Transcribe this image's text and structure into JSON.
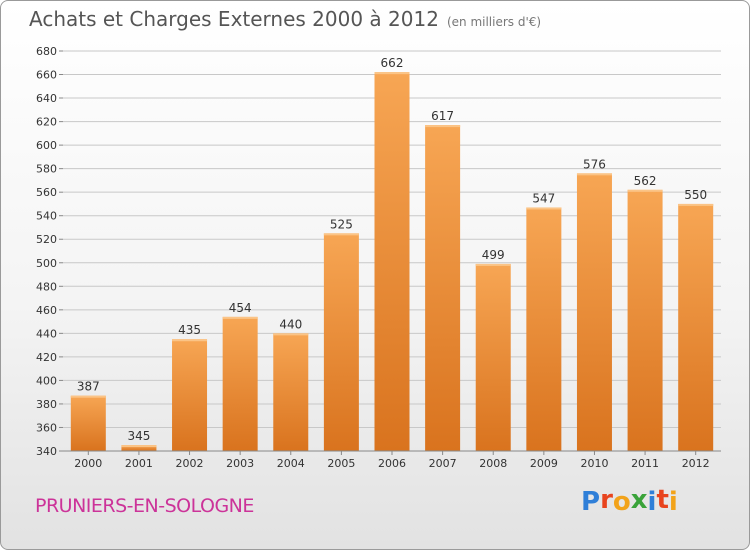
{
  "header": {
    "title": "Achats et Charges Externes 2000 à 2012",
    "subtitle": "(en milliers d'€)"
  },
  "footer": {
    "place": "PRUNIERS-EN-SOLOGNE",
    "logo_letters": [
      "P",
      "r",
      "o",
      "x",
      "i",
      "t",
      "i"
    ],
    "logo_colors": [
      "#2f7fd8",
      "#e8441e",
      "#f2a31a",
      "#3aa33a",
      "#2f7fd8",
      "#e8441e",
      "#f2a31a"
    ]
  },
  "chart_data": {
    "type": "bar",
    "categories": [
      "2000",
      "2001",
      "2002",
      "2003",
      "2004",
      "2005",
      "2006",
      "2007",
      "2008",
      "2009",
      "2010",
      "2011",
      "2012"
    ],
    "values": [
      387,
      345,
      435,
      454,
      440,
      525,
      662,
      617,
      499,
      547,
      576,
      562,
      550
    ],
    "data_labels": [
      "387",
      "345",
      "435",
      "454",
      "440",
      "525",
      "662",
      "617",
      "499",
      "547",
      "576",
      "562",
      "550"
    ],
    "title": "Achats et Charges Externes 2000 à 2012",
    "subtitle": "(en milliers d'€)",
    "xlabel": "",
    "ylabel": "",
    "ylim": [
      340,
      680
    ],
    "ytick_step": 20,
    "yticks": [
      "340",
      "360",
      "380",
      "400",
      "420",
      "440",
      "460",
      "480",
      "500",
      "520",
      "540",
      "560",
      "580",
      "600",
      "620",
      "640",
      "660",
      "680"
    ],
    "grid": true,
    "bar_color_top": "#f7a654",
    "bar_color_bottom": "#d9731e",
    "grid_color": "#c8c8c8"
  }
}
